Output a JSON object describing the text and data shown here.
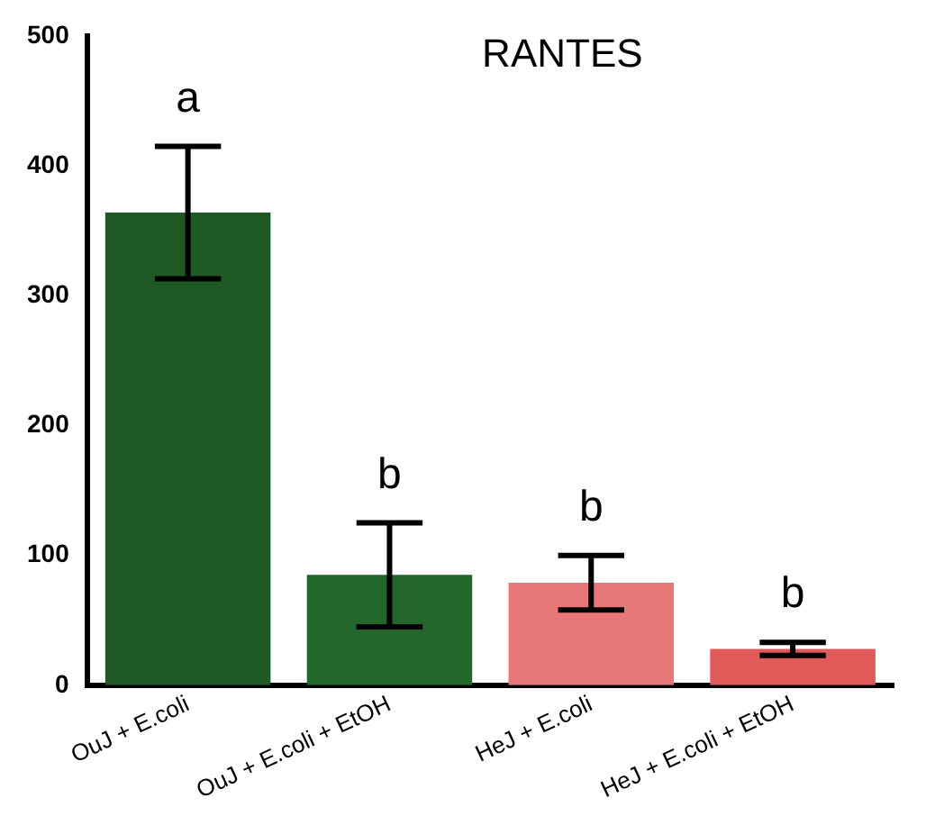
{
  "chart_data": {
    "type": "bar",
    "title": "RANTES",
    "categories": [
      "OuJ + E.coli",
      "OuJ + E.coli + EtOH",
      "HeJ + E.coli",
      "HeJ + E.coli + EtOH"
    ],
    "values": [
      364,
      85,
      79,
      28
    ],
    "colors": [
      "#1f5a24",
      "#23662a",
      "#e87878",
      "#e05a5a"
    ],
    "errors": [
      51,
      40,
      21,
      5
    ],
    "ylim": [
      0,
      500
    ],
    "yticks": [
      0,
      100,
      200,
      300,
      400,
      500
    ],
    "grid": false,
    "legend": false,
    "annotations": [
      "a",
      "b",
      "b",
      "b"
    ]
  }
}
